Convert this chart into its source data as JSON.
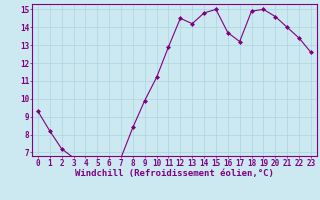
{
  "x": [
    0,
    1,
    2,
    3,
    4,
    5,
    6,
    7,
    8,
    9,
    10,
    11,
    12,
    13,
    14,
    15,
    16,
    17,
    18,
    19,
    20,
    21,
    22,
    23
  ],
  "y": [
    9.3,
    8.2,
    7.2,
    6.7,
    6.7,
    6.7,
    6.7,
    6.7,
    8.4,
    9.9,
    11.2,
    12.9,
    14.5,
    14.2,
    14.8,
    15.0,
    13.7,
    13.2,
    14.9,
    15.0,
    14.6,
    14.0,
    13.4,
    12.6
  ],
  "line_color": "#800080",
  "marker": "D",
  "marker_size": 2.0,
  "bg_color": "#cce8f0",
  "grid_color": "#aad4e0",
  "xlabel": "Windchill (Refroidissement éolien,°C)",
  "ylim_min": 6.8,
  "ylim_max": 15.3,
  "xlim_min": -0.5,
  "xlim_max": 23.5,
  "yticks": [
    7,
    8,
    9,
    10,
    11,
    12,
    13,
    14,
    15
  ],
  "xticks": [
    0,
    1,
    2,
    3,
    4,
    5,
    6,
    7,
    8,
    9,
    10,
    11,
    12,
    13,
    14,
    15,
    16,
    17,
    18,
    19,
    20,
    21,
    22,
    23
  ],
  "tick_label_fontsize": 5.5,
  "xlabel_fontsize": 6.5,
  "spine_color": "#800080",
  "tick_color": "#800080"
}
